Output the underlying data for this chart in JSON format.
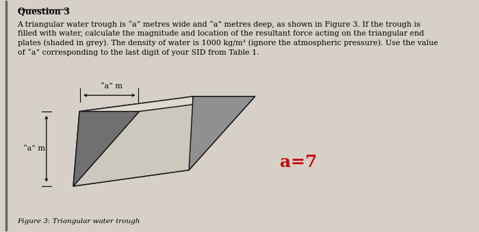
{
  "bg_color": "#d6d0c8",
  "title": "Question 3",
  "body_text": "A triangular water trough is “a” metres wide and “a” metres deep, as shown in Figure 3. If the trough is\nfilled with water, calculate the magnitude and location of the resultant force acting on the triangular end\nplates (shaded in grey). The density of water is 1000 kg/m³ (ignore the atmospheric pressure). Use the value\nof “a” corresponding to the last digit of your SID from Table 1.",
  "figure_caption": "Figure 3: Triangular water trough",
  "a_label": "a=7",
  "a_label_color": "#cc0000",
  "a_label_fontsize": 18,
  "label_am_top": "“a” m",
  "label_am_left": "“a” m",
  "trough_face_top": "#ede9e0",
  "trough_face_left": "#dedad0",
  "trough_face_right": "#ccc8be",
  "triangle_front": "#707070",
  "triangle_back": "#909090",
  "trough_edge": "#1a1a1a"
}
